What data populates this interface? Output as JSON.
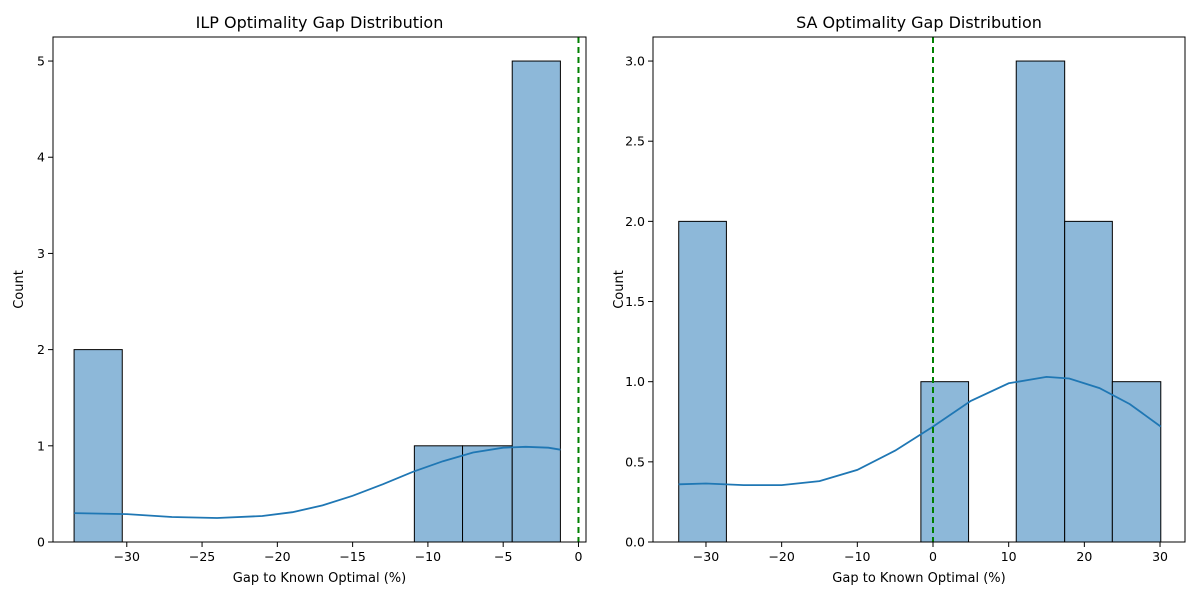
{
  "chart_data": [
    {
      "type": "histogram",
      "title": "ILP Optimality Gap Distribution",
      "xlabel": "Gap to Known Optimal (%)",
      "ylabel": "Count",
      "xlim": [
        -34.9,
        0.5
      ],
      "ylim": [
        0,
        5.25
      ],
      "xticks": [
        -30,
        -25,
        -20,
        -15,
        -10,
        -5,
        0
      ],
      "xtick_labels": [
        "−30",
        "−25",
        "−20",
        "−15",
        "−10",
        "−5",
        "0"
      ],
      "yticks": [
        0,
        1,
        2,
        3,
        4,
        5
      ],
      "ytick_labels": [
        "0",
        "1",
        "2",
        "3",
        "4",
        "5"
      ],
      "bins": [
        {
          "x0": -33.5,
          "x1": -30.3,
          "count": 2
        },
        {
          "x0": -10.9,
          "x1": -7.7,
          "count": 1
        },
        {
          "x0": -7.7,
          "x1": -4.4,
          "count": 1
        },
        {
          "x0": -4.4,
          "x1": -1.2,
          "count": 5
        }
      ],
      "kde": {
        "x": [
          -33.5,
          -30,
          -27,
          -24,
          -21,
          -19,
          -17,
          -15,
          -13,
          -11,
          -9,
          -7,
          -5,
          -3.5,
          -2,
          -1.2
        ],
        "y": [
          0.3,
          0.29,
          0.26,
          0.25,
          0.27,
          0.31,
          0.38,
          0.48,
          0.6,
          0.73,
          0.84,
          0.93,
          0.98,
          0.99,
          0.98,
          0.96
        ]
      },
      "reference_line": {
        "x": 0,
        "style": "dashed",
        "color": "#008000"
      },
      "grid": false
    },
    {
      "type": "histogram",
      "title": "SA Optimality Gap Distribution",
      "xlabel": "Gap to Known Optimal (%)",
      "ylabel": "Count",
      "xlim": [
        -37.0,
        33.3
      ],
      "ylim": [
        0,
        3.15
      ],
      "xticks": [
        -30,
        -20,
        -10,
        0,
        10,
        20,
        30
      ],
      "xtick_labels": [
        "−30",
        "−20",
        "−10",
        "0",
        "10",
        "20",
        "30"
      ],
      "yticks": [
        0,
        0.5,
        1,
        1.5,
        2,
        2.5,
        3
      ],
      "ytick_labels": [
        "0.0",
        "0.5",
        "1.0",
        "1.5",
        "2.0",
        "2.5",
        "3.0"
      ],
      "bins": [
        {
          "x0": -33.6,
          "x1": -27.3,
          "count": 2
        },
        {
          "x0": -1.6,
          "x1": 4.7,
          "count": 1
        },
        {
          "x0": 11.0,
          "x1": 17.4,
          "count": 3
        },
        {
          "x0": 17.4,
          "x1": 23.7,
          "count": 2
        },
        {
          "x0": 23.7,
          "x1": 30.1,
          "count": 1
        }
      ],
      "kde": {
        "x": [
          -33.6,
          -30,
          -25,
          -20,
          -15,
          -10,
          -5,
          0,
          5,
          10,
          15,
          18,
          22,
          26,
          30.1
        ],
        "y": [
          0.36,
          0.365,
          0.355,
          0.355,
          0.38,
          0.45,
          0.57,
          0.72,
          0.88,
          0.99,
          1.03,
          1.02,
          0.96,
          0.86,
          0.72
        ]
      },
      "reference_line": {
        "x": 0,
        "style": "dashed",
        "color": "#008000"
      },
      "grid": false
    }
  ],
  "colors": {
    "bar_fill": "#8db8d9",
    "bar_edge": "#000000",
    "kde_line": "#1f77b4",
    "reference_line": "#008000"
  }
}
